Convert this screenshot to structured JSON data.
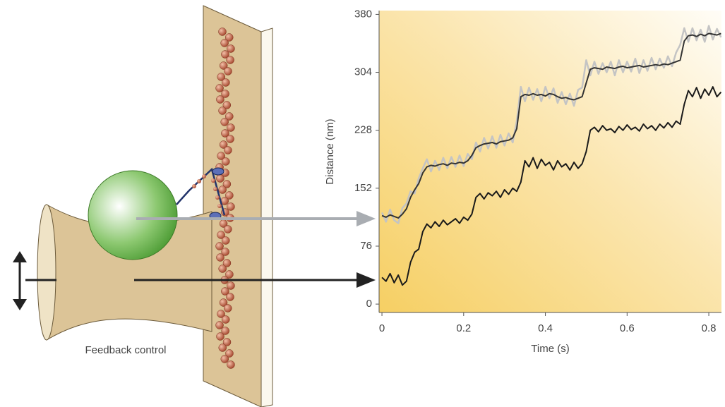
{
  "diagram_label": "Feedback control",
  "chart_data": {
    "type": "line",
    "xlabel": "Time (s)",
    "ylabel": "Distance (nm)",
    "xlim": [
      -0.007,
      0.831
    ],
    "ylim": [
      -11,
      385
    ],
    "xticks": [
      0,
      0.2,
      0.4,
      0.6,
      0.8
    ],
    "yticks": [
      0,
      76,
      152,
      228,
      304,
      380
    ],
    "x": [
      0,
      0.01,
      0.02,
      0.03,
      0.04,
      0.05,
      0.06,
      0.07,
      0.08,
      0.09,
      0.1,
      0.11,
      0.12,
      0.13,
      0.14,
      0.15,
      0.16,
      0.17,
      0.18,
      0.19,
      0.2,
      0.21,
      0.22,
      0.23,
      0.24,
      0.25,
      0.26,
      0.27,
      0.28,
      0.29,
      0.3,
      0.31,
      0.32,
      0.33,
      0.34,
      0.35,
      0.36,
      0.37,
      0.38,
      0.39,
      0.4,
      0.41,
      0.42,
      0.43,
      0.44,
      0.45,
      0.46,
      0.47,
      0.48,
      0.49,
      0.5,
      0.51,
      0.52,
      0.53,
      0.54,
      0.55,
      0.56,
      0.57,
      0.58,
      0.59,
      0.6,
      0.61,
      0.62,
      0.63,
      0.64,
      0.65,
      0.66,
      0.67,
      0.68,
      0.69,
      0.7,
      0.71,
      0.72,
      0.73,
      0.74,
      0.75,
      0.76,
      0.77,
      0.78,
      0.79,
      0.8,
      0.81,
      0.82,
      0.83
    ],
    "series": [
      {
        "color": "#c4c4c4",
        "values": [
          120,
          108,
          124,
          110,
          106,
          126,
          132,
          148,
          145,
          165,
          178,
          190,
          174,
          188,
          176,
          192,
          178,
          193,
          180,
          195,
          181,
          197,
          190,
          212,
          200,
          218,
          204,
          220,
          205,
          222,
          208,
          224,
          212,
          240,
          285,
          266,
          284,
          268,
          282,
          266,
          285,
          270,
          283,
          264,
          278,
          262,
          276,
          260,
          281,
          284,
          320,
          300,
          318,
          302,
          316,
          304,
          318,
          300,
          320,
          304,
          318,
          305,
          322,
          303,
          320,
          306,
          323,
          308,
          322,
          310,
          325,
          312,
          330,
          340,
          362,
          344,
          362,
          346,
          360,
          344,
          365,
          347,
          361,
          350
        ]
      },
      {
        "color": "#333333",
        "values": [
          116,
          114,
          117,
          115,
          113,
          118,
          125,
          140,
          150,
          158,
          172,
          180,
          182,
          181,
          183,
          184,
          182,
          185,
          184,
          186,
          185,
          188,
          195,
          205,
          208,
          210,
          211,
          212,
          210,
          213,
          214,
          215,
          218,
          230,
          272,
          275,
          274,
          276,
          274,
          275,
          273,
          276,
          275,
          272,
          270,
          271,
          269,
          268,
          270,
          272,
          290,
          308,
          310,
          309,
          308,
          311,
          310,
          309,
          311,
          312,
          310,
          311,
          312,
          313,
          311,
          312,
          313,
          314,
          313,
          315,
          314,
          316,
          318,
          320,
          345,
          352,
          353,
          351,
          354,
          352,
          355,
          354,
          353,
          355
        ]
      },
      {
        "color": "#1a1a1a",
        "values": [
          35,
          30,
          40,
          28,
          38,
          25,
          30,
          55,
          68,
          72,
          95,
          105,
          100,
          108,
          102,
          110,
          104,
          108,
          112,
          106,
          114,
          110,
          118,
          140,
          145,
          138,
          146,
          142,
          148,
          140,
          150,
          144,
          152,
          148,
          160,
          188,
          180,
          192,
          178,
          190,
          182,
          186,
          176,
          188,
          180,
          184,
          176,
          186,
          178,
          184,
          200,
          228,
          232,
          226,
          234,
          228,
          230,
          225,
          233,
          228,
          235,
          229,
          232,
          227,
          236,
          230,
          234,
          228,
          236,
          231,
          238,
          232,
          240,
          236,
          262,
          280,
          272,
          284,
          270,
          282,
          274,
          285,
          272,
          278
        ]
      }
    ]
  }
}
